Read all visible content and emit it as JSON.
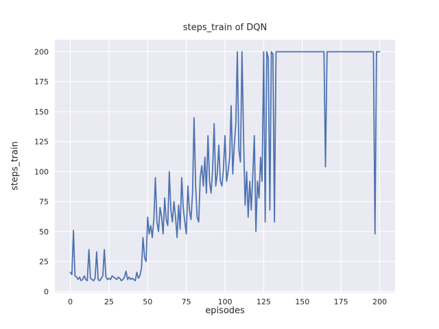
{
  "chart_data": {
    "type": "line",
    "title": "steps_train of DQN",
    "xlabel": "episodes",
    "ylabel": "steps_train",
    "grid": true,
    "legend": "none",
    "x_ticks": [
      0,
      25,
      50,
      75,
      100,
      125,
      150,
      175,
      200
    ],
    "y_ticks": [
      0,
      25,
      50,
      75,
      100,
      125,
      150,
      175,
      200
    ],
    "xlim": [
      -10,
      210
    ],
    "ylim": [
      -1,
      210
    ],
    "colors": {
      "line": "#4c72b0",
      "plot_bg": "#eaeaf2",
      "grid": "#ffffff",
      "text": "#262626",
      "figure_bg": "#ffffff"
    },
    "series": [
      {
        "name": "steps_train",
        "x_start": 0,
        "x_step": 1,
        "values": [
          16,
          14,
          51,
          13,
          12,
          10,
          12,
          9,
          10,
          13,
          10,
          9,
          35,
          11,
          10,
          9,
          11,
          33,
          10,
          9,
          11,
          13,
          35,
          12,
          10,
          11,
          10,
          13,
          12,
          11,
          10,
          12,
          11,
          9,
          10,
          12,
          17,
          10,
          12,
          10,
          11,
          10,
          9,
          16,
          11,
          13,
          20,
          45,
          28,
          25,
          62,
          48,
          55,
          45,
          60,
          95,
          58,
          50,
          70,
          62,
          48,
          78,
          60,
          55,
          100,
          68,
          58,
          75,
          62,
          45,
          72,
          52,
          95,
          70,
          58,
          48,
          88,
          68,
          60,
          82,
          145,
          88,
          62,
          58,
          95,
          105,
          88,
          112,
          82,
          130,
          92,
          82,
          102,
          140,
          88,
          98,
          122,
          92,
          88,
          102,
          130,
          92,
          100,
          112,
          155,
          98,
          122,
          140,
          200,
          118,
          108,
          200,
          128,
          72,
          100,
          62,
          92,
          68,
          98,
          130,
          50,
          92,
          78,
          112,
          92,
          200,
          58,
          200,
          195,
          68,
          200,
          198,
          58,
          200,
          200,
          200,
          200,
          200,
          200,
          200,
          200,
          200,
          200,
          200,
          200,
          200,
          200,
          200,
          200,
          200,
          200,
          200,
          200,
          200,
          200,
          200,
          200,
          200,
          200,
          200,
          200,
          200,
          200,
          200,
          200,
          104,
          200,
          200,
          200,
          200,
          200,
          200,
          200,
          200,
          200,
          200,
          200,
          200,
          200,
          200,
          200,
          200,
          200,
          200,
          200,
          200,
          200,
          200,
          200,
          200,
          200,
          200,
          200,
          200,
          200,
          200,
          200,
          48,
          200,
          200,
          200
        ]
      }
    ]
  }
}
